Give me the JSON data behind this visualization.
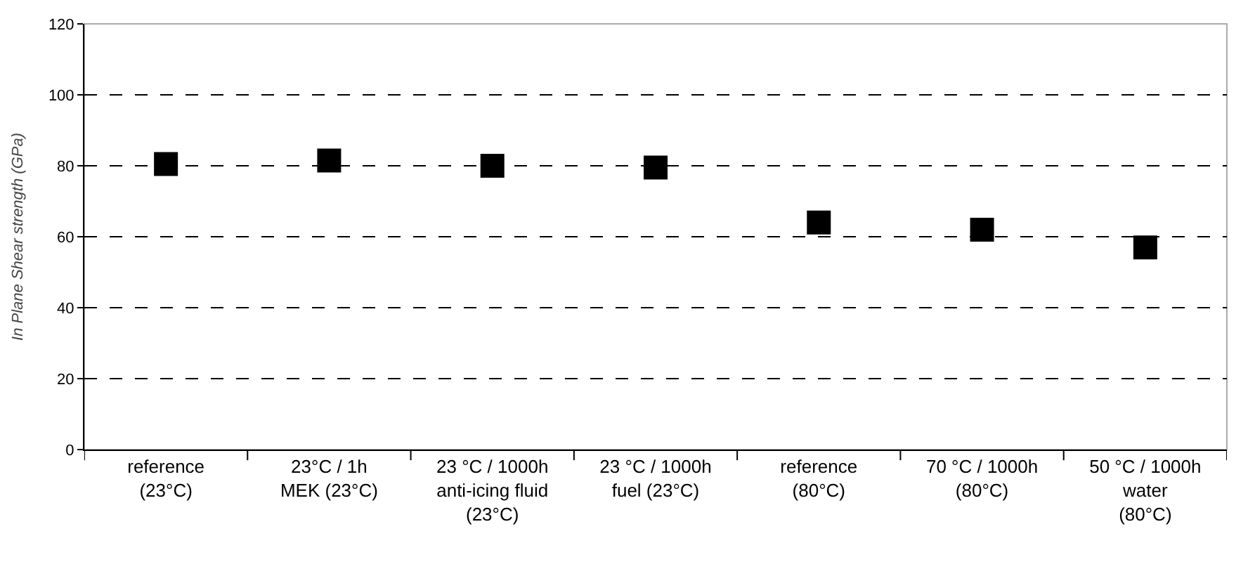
{
  "chart_data": {
    "type": "scatter",
    "ylabel": "In Plane Shear strength (GPa)",
    "categories": [
      "reference\n(23°C)",
      "23°C / 1h\nMEK (23°C)",
      "23 °C / 1000h\nanti-icing fluid\n(23°C)",
      "23 °C / 1000h\nfuel (23°C)",
      "reference\n(80°C)",
      "70 °C / 1000h\n(80°C)",
      "50 °C / 1000h\nwater\n(80°C)"
    ],
    "series": [
      {
        "color": "#000000",
        "values": [
          80.5,
          81.5,
          80,
          79.5,
          64,
          62,
          57
        ]
      }
    ],
    "marker": "square",
    "ylim": [
      0,
      120
    ],
    "yticks": [
      0,
      20,
      40,
      60,
      80,
      100,
      120
    ],
    "grid": "y"
  }
}
